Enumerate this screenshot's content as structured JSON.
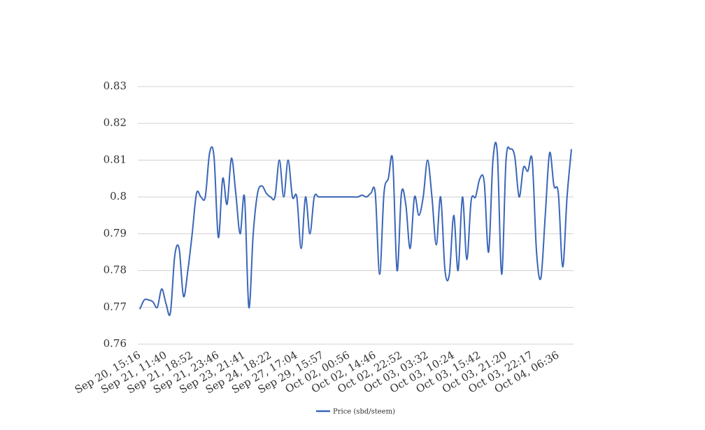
{
  "chart_data": {
    "type": "line",
    "categories": [
      "Sep 20, 15:16",
      null,
      null,
      null,
      null,
      null,
      "Sep 21, 11:40",
      null,
      null,
      null,
      null,
      null,
      "Sep 21, 18:52",
      null,
      null,
      null,
      null,
      null,
      "Sep 21, 23:46",
      null,
      null,
      null,
      null,
      null,
      "Sep 23, 21:41",
      null,
      null,
      null,
      null,
      null,
      "Sep 24, 18:22",
      null,
      null,
      null,
      null,
      null,
      "Sep 27, 17:04",
      null,
      null,
      null,
      null,
      null,
      "Sep 29, 15:57",
      null,
      null,
      null,
      null,
      null,
      "Oct 02, 00:56",
      null,
      null,
      null,
      null,
      null,
      "Oct 02, 14:46",
      null,
      null,
      null,
      null,
      null,
      "Oct 02, 22:52",
      null,
      null,
      null,
      null,
      null,
      "Oct 03, 03:32",
      null,
      null,
      null,
      null,
      null,
      "Oct 03, 10:24",
      null,
      null,
      null,
      null,
      null,
      "Oct 03, 15:42",
      null,
      null,
      null,
      null,
      null,
      "Oct 03, 21:20",
      null,
      null,
      null,
      null,
      null,
      "Oct 03, 22:17",
      null,
      null,
      null,
      null,
      null,
      "Oct 04, 06:36",
      null,
      null,
      null
    ],
    "series": [
      {
        "name": "Price (sbd/steem)",
        "color": "#3a66b8",
        "values": [
          0.7695,
          0.772,
          0.772,
          0.7715,
          0.77,
          0.775,
          0.771,
          0.7685,
          0.784,
          0.786,
          0.773,
          0.78,
          0.79,
          0.801,
          0.8,
          0.8,
          0.812,
          0.811,
          0.789,
          0.805,
          0.798,
          0.8105,
          0.801,
          0.79,
          0.8,
          0.77,
          0.79,
          0.801,
          0.803,
          0.801,
          0.8,
          0.8,
          0.81,
          0.8,
          0.81,
          0.8,
          0.8,
          0.786,
          0.8,
          0.79,
          0.8,
          0.8,
          0.8,
          0.8,
          0.8,
          0.8,
          0.8,
          0.8,
          0.8,
          0.8,
          0.8,
          0.8005,
          0.8,
          0.801,
          0.801,
          0.779,
          0.801,
          0.805,
          0.81,
          0.78,
          0.801,
          0.798,
          0.786,
          0.8,
          0.795,
          0.8,
          0.81,
          0.8,
          0.787,
          0.8,
          0.78,
          0.779,
          0.795,
          0.78,
          0.8,
          0.783,
          0.799,
          0.8,
          0.805,
          0.804,
          0.785,
          0.81,
          0.812,
          0.779,
          0.81,
          0.813,
          0.811,
          0.8,
          0.808,
          0.807,
          0.81,
          0.785,
          0.778,
          0.795,
          0.812,
          0.803,
          0.801,
          0.781,
          0.8,
          0.813
        ]
      }
    ],
    "ylim": [
      0.76,
      0.83
    ],
    "yticks": [
      0.76,
      0.77,
      0.78,
      0.79,
      0.8,
      0.81,
      0.82,
      0.83
    ],
    "grid": true,
    "legend": "bottom"
  }
}
